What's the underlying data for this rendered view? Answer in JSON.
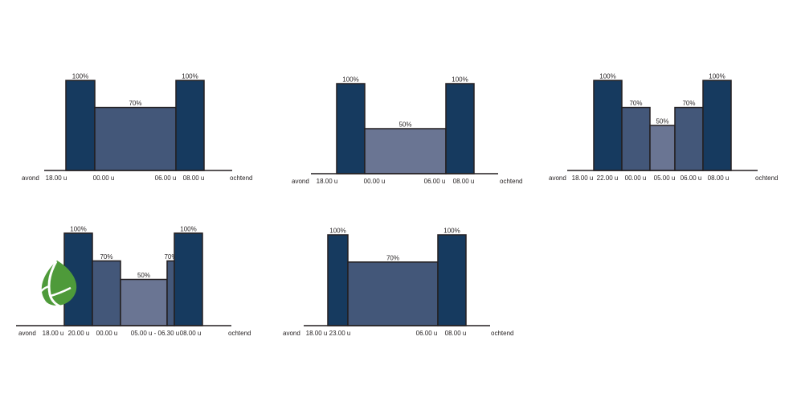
{
  "colors": {
    "level_100": "#163a5f",
    "level_70": "#435779",
    "level_50": "#6a7593",
    "outline": "#231f20",
    "leaf": "#4e9a3a"
  },
  "icons": {
    "logo": "green-leaf-icon"
  },
  "chart_data": [
    {
      "type": "bar",
      "title": "",
      "start_label": "avond",
      "end_label": "ochtend",
      "time_labels": [
        "18.00 u",
        "00.00 u",
        "06.00 u",
        "08.00 u"
      ],
      "segments": [
        {
          "level": 100,
          "label": "100%"
        },
        {
          "level": 70,
          "label": "70%"
        },
        {
          "level": 100,
          "label": "100%"
        }
      ]
    },
    {
      "type": "bar",
      "title": "",
      "start_label": "avond",
      "end_label": "ochtend",
      "time_labels": [
        "18.00 u",
        "00.00 u",
        "06.00 u",
        "08.00 u"
      ],
      "segments": [
        {
          "level": 100,
          "label": "100%"
        },
        {
          "level": 50,
          "label": "50%"
        },
        {
          "level": 100,
          "label": "100%"
        }
      ]
    },
    {
      "type": "bar",
      "title": "",
      "start_label": "avond",
      "end_label": "ochtend",
      "time_labels": [
        "18.00 u",
        "22.00 u",
        "00.00 u",
        "05.00 u",
        "06.00 u",
        "08.00 u"
      ],
      "segments": [
        {
          "level": 100,
          "label": "100%"
        },
        {
          "level": 70,
          "label": "70%"
        },
        {
          "level": 50,
          "label": "50%"
        },
        {
          "level": 70,
          "label": "70%"
        },
        {
          "level": 100,
          "label": "100%"
        }
      ]
    },
    {
      "type": "bar",
      "title": "",
      "start_label": "avond",
      "end_label": "ochtend",
      "time_labels": [
        "18.00 u",
        "20.00 u",
        "00.00 u",
        "05.00 u - 06.30 u",
        "08.00 u"
      ],
      "segments": [
        {
          "level": 100,
          "label": "100%"
        },
        {
          "level": 70,
          "label": "70%"
        },
        {
          "level": 50,
          "label": "50%"
        },
        {
          "level": 70,
          "label": "70%"
        },
        {
          "level": 100,
          "label": "100%"
        }
      ]
    },
    {
      "type": "bar",
      "title": "",
      "start_label": "avond",
      "end_label": "ochtend",
      "time_labels": [
        "18.00 u",
        "23.00 u",
        "06.00 u",
        "08.00 u"
      ],
      "segments": [
        {
          "level": 100,
          "label": "100%"
        },
        {
          "level": 70,
          "label": "70%"
        },
        {
          "level": 100,
          "label": "100%"
        }
      ]
    }
  ]
}
